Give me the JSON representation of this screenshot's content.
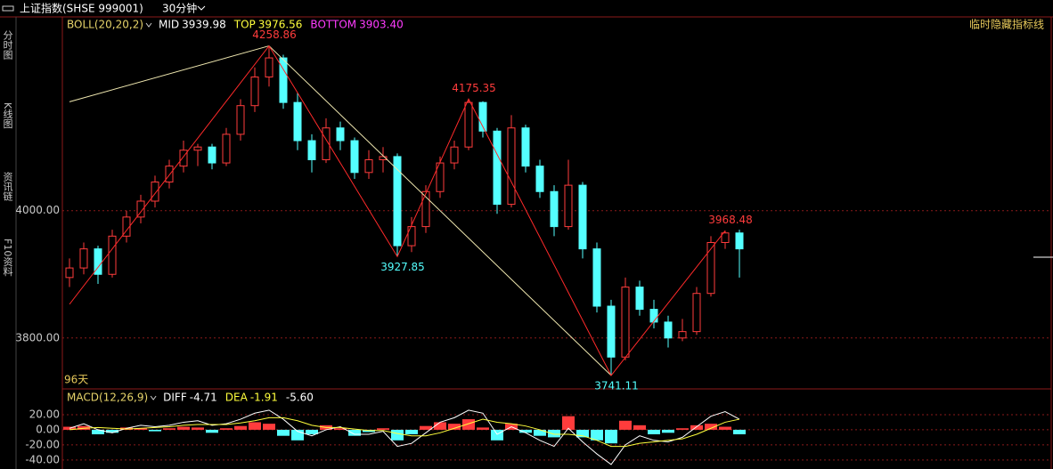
{
  "header": {
    "title": "上证指数(SHSE 999001)",
    "period": "30分钟"
  },
  "sidebar": [
    "分时图",
    "K线图",
    "资讯链",
    "F10资料"
  ],
  "hide_button": "临时隐藏指标线",
  "chart_data": [
    {
      "type": "candlestick",
      "indicator": {
        "name": "BOLL(20,20,2)",
        "color": "#e6d36a",
        "items": [
          {
            "name": "MID",
            "value": 3939.98,
            "color": "#ffffff"
          },
          {
            "name": "TOP",
            "value": 3976.56,
            "color": "#ffff3c"
          },
          {
            "name": "BOTTOM",
            "value": 3903.4,
            "value_label": "3903.40",
            "color": "#ff3cff"
          }
        ]
      },
      "period_label": "96天",
      "up_color": "#ff3c3c",
      "down_color": "#54ffff",
      "ylim": [
        3720,
        4303
      ],
      "yticks": [
        {
          "value": 4000,
          "label": "4000.00"
        },
        {
          "value": 3800,
          "label": "3800.00"
        }
      ],
      "candles": [
        [
          3895,
          3925,
          3880,
          3910
        ],
        [
          3910,
          3950,
          3900,
          3940
        ],
        [
          3940,
          3945,
          3885,
          3900
        ],
        [
          3900,
          3970,
          3895,
          3960
        ],
        [
          3960,
          4000,
          3950,
          3990
        ],
        [
          3990,
          4025,
          3980,
          4015
        ],
        [
          4015,
          4055,
          4005,
          4045
        ],
        [
          4045,
          4080,
          4035,
          4070
        ],
        [
          4070,
          4110,
          4060,
          4095
        ],
        [
          4095,
          4105,
          4070,
          4100
        ],
        [
          4100,
          4105,
          4065,
          4075
        ],
        [
          4075,
          4130,
          4070,
          4120
        ],
        [
          4120,
          4175,
          4110,
          4165
        ],
        [
          4165,
          4225,
          4155,
          4210
        ],
        [
          4210,
          4258.86,
          4195,
          4240
        ],
        [
          4240,
          4245,
          4160,
          4170
        ],
        [
          4170,
          4185,
          4095,
          4110
        ],
        [
          4110,
          4120,
          4060,
          4080
        ],
        [
          4080,
          4145,
          4075,
          4130
        ],
        [
          4130,
          4140,
          4095,
          4110
        ],
        [
          4110,
          4115,
          4050,
          4060
        ],
        [
          4060,
          4095,
          4050,
          4080
        ],
        [
          4080,
          4100,
          4060,
          4085
        ],
        [
          4085,
          4090,
          3927.85,
          3945
        ],
        [
          3945,
          3990,
          3935,
          3975
        ],
        [
          3975,
          4040,
          3965,
          4030
        ],
        [
          4030,
          4085,
          4020,
          4075
        ],
        [
          4075,
          4110,
          4065,
          4100
        ],
        [
          4100,
          4175.35,
          4095,
          4170
        ],
        [
          4170,
          4172,
          4115,
          4125
        ],
        [
          4125,
          4130,
          3995,
          4010
        ],
        [
          4010,
          4150,
          4005,
          4130
        ],
        [
          4130,
          4135,
          4060,
          4070
        ],
        [
          4070,
          4080,
          4020,
          4030
        ],
        [
          4030,
          4040,
          3960,
          3975
        ],
        [
          3975,
          4080,
          3970,
          4040
        ],
        [
          4040,
          4045,
          3925,
          3940
        ],
        [
          3940,
          3950,
          3840,
          3850
        ],
        [
          3850,
          3860,
          3741.11,
          3770
        ],
        [
          3770,
          3895,
          3765,
          3880
        ],
        [
          3880,
          3890,
          3835,
          3845
        ],
        [
          3845,
          3860,
          3815,
          3825
        ],
        [
          3825,
          3835,
          3785,
          3800
        ],
        [
          3800,
          3830,
          3795,
          3810
        ],
        [
          3810,
          3880,
          3805,
          3870
        ],
        [
          3870,
          3960,
          3865,
          3950
        ],
        [
          3950,
          3968.48,
          3940,
          3965
        ],
        [
          3965,
          3970,
          3895,
          3940
        ]
      ],
      "zigzag": {
        "color": "#ff2a2a",
        "x": [
          0,
          14,
          23,
          28,
          38,
          46
        ],
        "values": [
          3853,
          4258.86,
          3927.85,
          4175.35,
          3741.11,
          3968.48
        ]
      },
      "trendlines": [
        {
          "color": "#f0e8b0",
          "x": [
            0,
            14
          ],
          "values": [
            4171,
            4258.86
          ]
        },
        {
          "color": "#f0e8b0",
          "x": [
            14,
            38
          ],
          "values": [
            4258.86,
            3741.11
          ]
        }
      ]
    },
    {
      "type": "macd",
      "indicator": {
        "name": "MACD(12,26,9)",
        "color": "#e6d36a",
        "items": [
          {
            "name": "DIFF",
            "value": -4.71,
            "color": "#ffffff"
          },
          {
            "name": "DEA",
            "value": -1.91,
            "color": "#ffff3c"
          },
          {
            "value": -5.6,
            "value_label": "-5.60",
            "color": "#ffffff"
          }
        ]
      },
      "ylim": [
        -52,
        53
      ],
      "yticks": [
        {
          "value": 20,
          "label": "20.00"
        },
        {
          "value": 0,
          "label": "0.00"
        },
        {
          "value": -20,
          "label": "-20.00"
        },
        {
          "value": -40,
          "label": "-40.00"
        }
      ],
      "up_color": "#ff3c3c",
      "down_color": "#54ffff",
      "diff_color": "#ffffff",
      "dea_color": "#ffff3c",
      "histogram": [
        4,
        5,
        -6,
        -4,
        3,
        2,
        -2,
        2,
        4,
        3,
        -4,
        2,
        5,
        10,
        8,
        -8,
        -14,
        -6,
        6,
        2,
        -8,
        -3,
        2,
        -14,
        -6,
        5,
        10,
        8,
        14,
        3,
        -14,
        8,
        -4,
        -8,
        -10,
        18,
        -10,
        -14,
        -18,
        12,
        6,
        -6,
        -4,
        2,
        6,
        8,
        4,
        -6
      ],
      "diff": [
        2,
        8,
        0,
        -4,
        2,
        6,
        4,
        6,
        10,
        12,
        6,
        8,
        14,
        22,
        26,
        14,
        -2,
        -8,
        0,
        4,
        -6,
        -6,
        -2,
        -22,
        -18,
        -4,
        10,
        16,
        26,
        22,
        -6,
        4,
        -4,
        -14,
        -22,
        2,
        -16,
        -32,
        -46,
        -20,
        -8,
        -14,
        -16,
        -10,
        4,
        18,
        24,
        14
      ],
      "dea": [
        0,
        2,
        3,
        2,
        1,
        2,
        3,
        4,
        6,
        7,
        7,
        7,
        9,
        12,
        16,
        16,
        12,
        6,
        3,
        3,
        1,
        -1,
        -1,
        -5,
        -8,
        -8,
        -4,
        2,
        8,
        14,
        10,
        8,
        5,
        0,
        -6,
        -6,
        -8,
        -14,
        -22,
        -22,
        -18,
        -16,
        -14,
        -12,
        -6,
        2,
        10,
        14
      ]
    }
  ]
}
